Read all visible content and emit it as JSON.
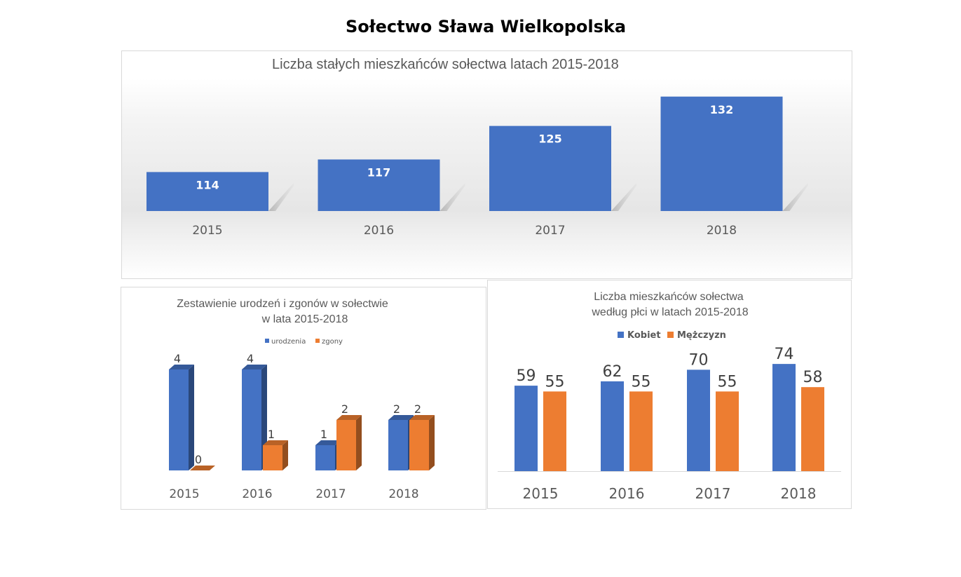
{
  "page": {
    "title": "Sołectwo Sława Wielkopolska"
  },
  "colors": {
    "blue": "#4472c4",
    "orange": "#ed7d31"
  },
  "chart_data": [
    {
      "type": "bar",
      "title": "Liczba stałych mieszkańców sołectwa latach 2015-2018",
      "categories": [
        "2015",
        "2016",
        "2017",
        "2018"
      ],
      "values": [
        114,
        117,
        125,
        132
      ],
      "legend": "none",
      "grid": false
    },
    {
      "type": "bar",
      "title_lines": [
        "Zestawienie urodzeń i zgonów w sołectwie",
        "w lata 2015-2018"
      ],
      "categories": [
        "2015",
        "2016",
        "2017",
        "2018"
      ],
      "series": [
        {
          "name": "urodzenia",
          "values": [
            4,
            4,
            1,
            2
          ]
        },
        {
          "name": "zgony",
          "values": [
            0,
            1,
            2,
            2
          ]
        }
      ],
      "ylim": [
        0,
        4
      ],
      "legend": "top",
      "grid": false
    },
    {
      "type": "bar",
      "title_lines": [
        "Liczba mieszkańców sołectwa",
        "według płci w latach 2015-2018"
      ],
      "categories": [
        "2015",
        "2016",
        "2017",
        "2018"
      ],
      "series": [
        {
          "name": "Kobiet",
          "values": [
            59,
            62,
            70,
            74
          ]
        },
        {
          "name": "Mężczyzn",
          "values": [
            55,
            55,
            55,
            58
          ]
        }
      ],
      "legend": "top",
      "grid": false
    }
  ]
}
